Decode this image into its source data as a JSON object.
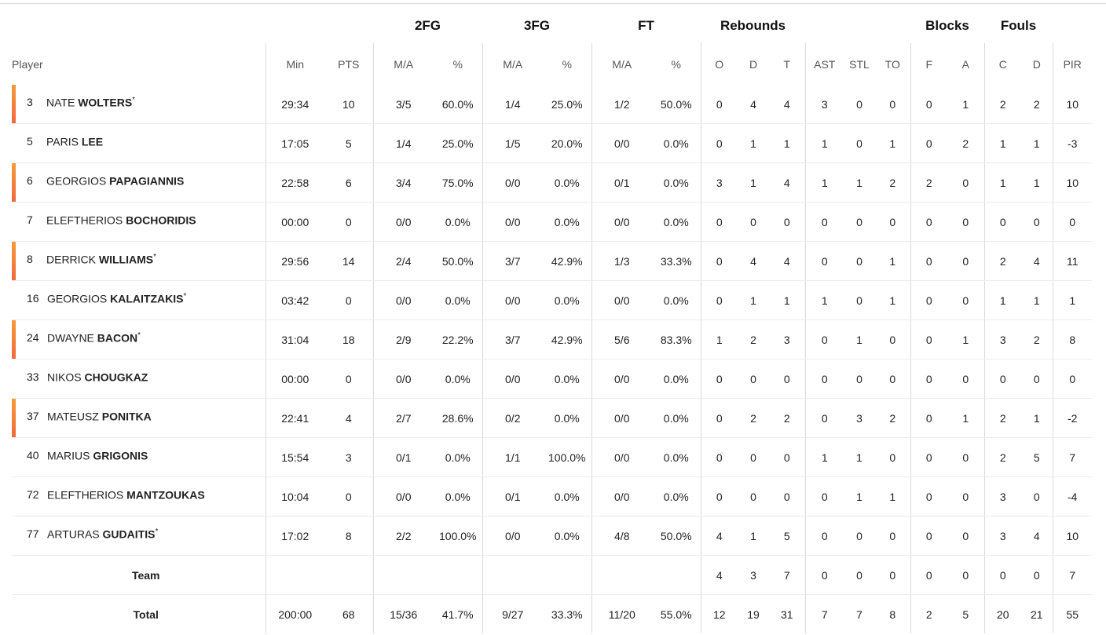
{
  "groups": {
    "fg2": "2FG",
    "fg3": "3FG",
    "ft": "FT",
    "reb": "Rebounds",
    "blocks": "Blocks",
    "fouls": "Fouls"
  },
  "headers": {
    "player": "Player",
    "min": "Min",
    "pts": "PTS",
    "fg2_ma": "M/A",
    "fg2_pct": "%",
    "fg3_ma": "M/A",
    "fg3_pct": "%",
    "ft_ma": "M/A",
    "ft_pct": "%",
    "o": "O",
    "d": "D",
    "t": "T",
    "ast": "AST",
    "stl": "STL",
    "to": "TO",
    "bf": "F",
    "ba": "A",
    "fc": "C",
    "fd": "D",
    "pir": "PIR"
  },
  "colors": {
    "starter_bar_top": "#f59b3a",
    "starter_bar_bottom": "#f06a3c",
    "header_text": "#555555"
  },
  "players": [
    {
      "starter": true,
      "number": "3",
      "first": "NATE",
      "last": "WOLTERS",
      "mark": "*",
      "min": "29:34",
      "pts": "10",
      "fg2_ma": "3/5",
      "fg2_pct": "60.0%",
      "fg3_ma": "1/4",
      "fg3_pct": "25.0%",
      "ft_ma": "1/2",
      "ft_pct": "50.0%",
      "o": "0",
      "d": "4",
      "t": "4",
      "ast": "3",
      "stl": "0",
      "to": "0",
      "bf": "0",
      "ba": "1",
      "fc": "2",
      "fd": "2",
      "pir": "10"
    },
    {
      "starter": false,
      "number": "5",
      "first": "PARIS",
      "last": "LEE",
      "mark": "",
      "min": "17:05",
      "pts": "5",
      "fg2_ma": "1/4",
      "fg2_pct": "25.0%",
      "fg3_ma": "1/5",
      "fg3_pct": "20.0%",
      "ft_ma": "0/0",
      "ft_pct": "0.0%",
      "o": "0",
      "d": "1",
      "t": "1",
      "ast": "1",
      "stl": "0",
      "to": "1",
      "bf": "0",
      "ba": "2",
      "fc": "1",
      "fd": "1",
      "pir": "-3"
    },
    {
      "starter": true,
      "number": "6",
      "first": "GEORGIOS",
      "last": "PAPAGIANNIS",
      "mark": "",
      "min": "22:58",
      "pts": "6",
      "fg2_ma": "3/4",
      "fg2_pct": "75.0%",
      "fg3_ma": "0/0",
      "fg3_pct": "0.0%",
      "ft_ma": "0/1",
      "ft_pct": "0.0%",
      "o": "3",
      "d": "1",
      "t": "4",
      "ast": "1",
      "stl": "1",
      "to": "2",
      "bf": "2",
      "ba": "0",
      "fc": "1",
      "fd": "1",
      "pir": "10"
    },
    {
      "starter": false,
      "number": "7",
      "first": "ELEFTHERIOS",
      "last": "BOCHORIDIS",
      "mark": "",
      "min": "00:00",
      "pts": "0",
      "fg2_ma": "0/0",
      "fg2_pct": "0.0%",
      "fg3_ma": "0/0",
      "fg3_pct": "0.0%",
      "ft_ma": "0/0",
      "ft_pct": "0.0%",
      "o": "0",
      "d": "0",
      "t": "0",
      "ast": "0",
      "stl": "0",
      "to": "0",
      "bf": "0",
      "ba": "0",
      "fc": "0",
      "fd": "0",
      "pir": "0"
    },
    {
      "starter": true,
      "number": "8",
      "first": "DERRICK",
      "last": "WILLIAMS",
      "mark": "*",
      "min": "29:56",
      "pts": "14",
      "fg2_ma": "2/4",
      "fg2_pct": "50.0%",
      "fg3_ma": "3/7",
      "fg3_pct": "42.9%",
      "ft_ma": "1/3",
      "ft_pct": "33.3%",
      "o": "0",
      "d": "4",
      "t": "4",
      "ast": "0",
      "stl": "0",
      "to": "1",
      "bf": "0",
      "ba": "0",
      "fc": "2",
      "fd": "4",
      "pir": "11"
    },
    {
      "starter": false,
      "number": "16",
      "first": "GEORGIOS",
      "last": "KALAITZAKIS",
      "mark": "*",
      "min": "03:42",
      "pts": "0",
      "fg2_ma": "0/0",
      "fg2_pct": "0.0%",
      "fg3_ma": "0/0",
      "fg3_pct": "0.0%",
      "ft_ma": "0/0",
      "ft_pct": "0.0%",
      "o": "0",
      "d": "1",
      "t": "1",
      "ast": "1",
      "stl": "0",
      "to": "1",
      "bf": "0",
      "ba": "0",
      "fc": "1",
      "fd": "1",
      "pir": "1"
    },
    {
      "starter": true,
      "number": "24",
      "first": "DWAYNE",
      "last": "BACON",
      "mark": "*",
      "min": "31:04",
      "pts": "18",
      "fg2_ma": "2/9",
      "fg2_pct": "22.2%",
      "fg3_ma": "3/7",
      "fg3_pct": "42.9%",
      "ft_ma": "5/6",
      "ft_pct": "83.3%",
      "o": "1",
      "d": "2",
      "t": "3",
      "ast": "0",
      "stl": "1",
      "to": "0",
      "bf": "0",
      "ba": "1",
      "fc": "3",
      "fd": "2",
      "pir": "8"
    },
    {
      "starter": false,
      "number": "33",
      "first": "NIKOS",
      "last": "CHOUGKAZ",
      "mark": "",
      "min": "00:00",
      "pts": "0",
      "fg2_ma": "0/0",
      "fg2_pct": "0.0%",
      "fg3_ma": "0/0",
      "fg3_pct": "0.0%",
      "ft_ma": "0/0",
      "ft_pct": "0.0%",
      "o": "0",
      "d": "0",
      "t": "0",
      "ast": "0",
      "stl": "0",
      "to": "0",
      "bf": "0",
      "ba": "0",
      "fc": "0",
      "fd": "0",
      "pir": "0"
    },
    {
      "starter": true,
      "number": "37",
      "first": "MATEUSZ",
      "last": "PONITKA",
      "mark": "",
      "min": "22:41",
      "pts": "4",
      "fg2_ma": "2/7",
      "fg2_pct": "28.6%",
      "fg3_ma": "0/2",
      "fg3_pct": "0.0%",
      "ft_ma": "0/0",
      "ft_pct": "0.0%",
      "o": "0",
      "d": "2",
      "t": "2",
      "ast": "0",
      "stl": "3",
      "to": "2",
      "bf": "0",
      "ba": "1",
      "fc": "2",
      "fd": "1",
      "pir": "-2"
    },
    {
      "starter": false,
      "number": "40",
      "first": "MARIUS",
      "last": "GRIGONIS",
      "mark": "",
      "min": "15:54",
      "pts": "3",
      "fg2_ma": "0/1",
      "fg2_pct": "0.0%",
      "fg3_ma": "1/1",
      "fg3_pct": "100.0%",
      "ft_ma": "0/0",
      "ft_pct": "0.0%",
      "o": "0",
      "d": "0",
      "t": "0",
      "ast": "1",
      "stl": "1",
      "to": "0",
      "bf": "0",
      "ba": "0",
      "fc": "2",
      "fd": "5",
      "pir": "7"
    },
    {
      "starter": false,
      "number": "72",
      "first": "ELEFTHERIOS",
      "last": "MANTZOUKAS",
      "mark": "",
      "min": "10:04",
      "pts": "0",
      "fg2_ma": "0/0",
      "fg2_pct": "0.0%",
      "fg3_ma": "0/1",
      "fg3_pct": "0.0%",
      "ft_ma": "0/0",
      "ft_pct": "0.0%",
      "o": "0",
      "d": "0",
      "t": "0",
      "ast": "0",
      "stl": "1",
      "to": "1",
      "bf": "0",
      "ba": "0",
      "fc": "3",
      "fd": "0",
      "pir": "-4"
    },
    {
      "starter": false,
      "number": "77",
      "first": "ARTURAS",
      "last": "GUDAITIS",
      "mark": "*",
      "min": "17:02",
      "pts": "8",
      "fg2_ma": "2/2",
      "fg2_pct": "100.0%",
      "fg3_ma": "0/0",
      "fg3_pct": "0.0%",
      "ft_ma": "4/8",
      "ft_pct": "50.0%",
      "o": "4",
      "d": "1",
      "t": "5",
      "ast": "0",
      "stl": "0",
      "to": "0",
      "bf": "0",
      "ba": "0",
      "fc": "3",
      "fd": "4",
      "pir": "10"
    }
  ],
  "team": {
    "label": "Team",
    "min": "",
    "pts": "",
    "fg2_ma": "",
    "fg2_pct": "",
    "fg3_ma": "",
    "fg3_pct": "",
    "ft_ma": "",
    "ft_pct": "",
    "o": "4",
    "d": "3",
    "t": "7",
    "ast": "0",
    "stl": "0",
    "to": "0",
    "bf": "0",
    "ba": "0",
    "fc": "0",
    "fd": "0",
    "pir": "7"
  },
  "total": {
    "label": "Total",
    "min": "200:00",
    "pts": "68",
    "fg2_ma": "15/36",
    "fg2_pct": "41.7%",
    "fg3_ma": "9/27",
    "fg3_pct": "33.3%",
    "ft_ma": "11/20",
    "ft_pct": "55.0%",
    "o": "12",
    "d": "19",
    "t": "31",
    "ast": "7",
    "stl": "7",
    "to": "8",
    "bf": "2",
    "ba": "5",
    "fc": "20",
    "fd": "21",
    "pir": "55"
  }
}
